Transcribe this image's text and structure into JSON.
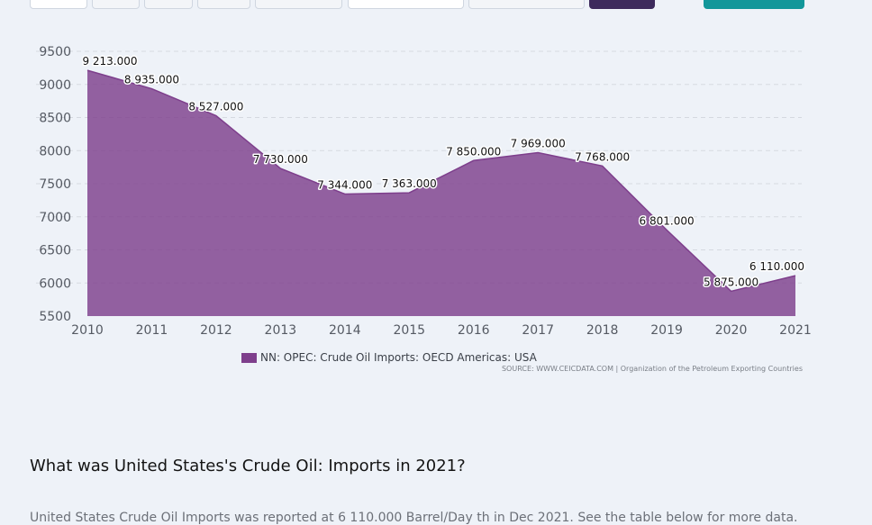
{
  "toolbar": {
    "buttons": [
      {
        "name": "range-button-1",
        "style": "white",
        "label": ""
      },
      {
        "name": "range-button-2",
        "style": "plain",
        "label": ""
      },
      {
        "name": "range-button-3",
        "style": "plain",
        "label": ""
      },
      {
        "name": "range-button-4",
        "style": "plain",
        "label": ""
      },
      {
        "name": "range-button-5",
        "style": "plain",
        "label": ""
      },
      {
        "name": "date-field",
        "style": "white",
        "label": ""
      },
      {
        "name": "select-field",
        "style": "plain",
        "label": ""
      },
      {
        "name": "apply-button",
        "style": "dark",
        "label": ""
      },
      {
        "name": "action-button",
        "style": "teal",
        "label": ""
      }
    ]
  },
  "chart_data": {
    "type": "area",
    "x": [
      2010,
      2011,
      2012,
      2013,
      2014,
      2015,
      2016,
      2017,
      2018,
      2019,
      2020,
      2021
    ],
    "series": [
      {
        "name": "NN: OPEC: Crude Oil Imports: OECD Americas: USA",
        "values": [
          9213,
          8935,
          8527,
          7730,
          7344,
          7363,
          7850,
          7969,
          7768,
          6801,
          5875,
          6110
        ],
        "labels": [
          "9 213.000",
          "8 935.000",
          "8 527.000",
          "7 730.000",
          "7 344.000",
          "7 363.000",
          "7 850.000",
          "7 969.000",
          "7 768.000",
          "6 801.000",
          "5 875.000",
          "6 110.000"
        ],
        "color": "#7e3f8c"
      }
    ],
    "ylim": [
      5500,
      9500
    ],
    "yticks": [
      5500,
      6000,
      6500,
      7000,
      7500,
      8000,
      8500,
      9000,
      9500
    ],
    "xticks": [
      "2010",
      "2011",
      "2012",
      "2013",
      "2014",
      "2015",
      "2016",
      "2017",
      "2018",
      "2019",
      "2020",
      "2021"
    ],
    "grid": true,
    "legend_position": "bottom",
    "source": "SOURCE: WWW.CEICDATA.COM | Organization of the Petroleum Exporting Countries"
  },
  "question": "What was United States's Crude Oil: Imports in 2021?",
  "answer": "United States Crude Oil Imports was reported at 6 110.000 Barrel/Day th in Dec 2021. See the table below for more data."
}
